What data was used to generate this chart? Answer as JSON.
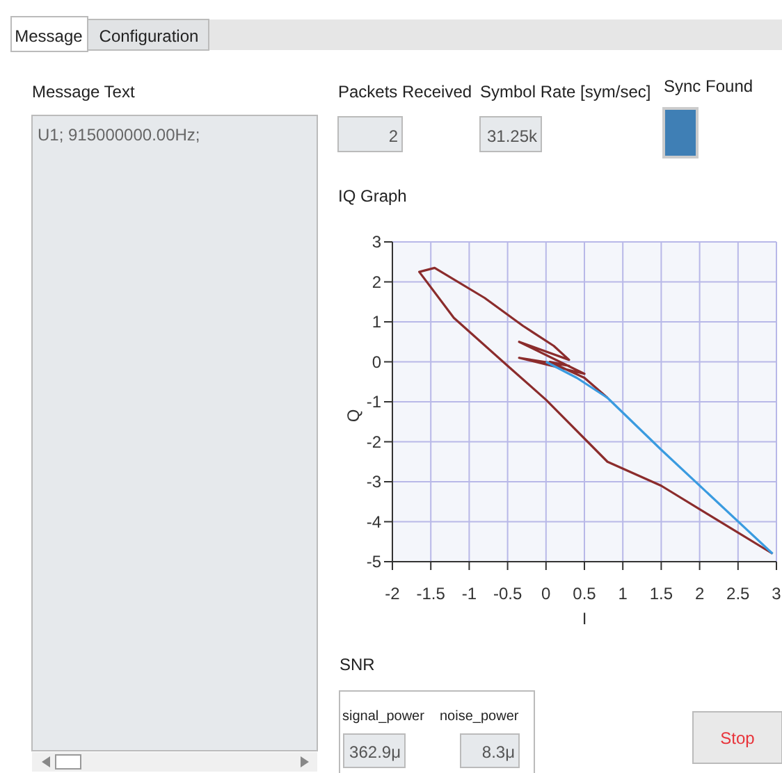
{
  "chart_data": [
    {
      "type": "other",
      "annotations": [
        "Message",
        "Configuration",
        "Message Text",
        "U1; 915000000.00Hz;",
        "Packets Received",
        "2",
        "Symbol Rate [sym/sec]",
        "31.25k",
        "Sync Found",
        "SNR",
        "signal_power",
        "noise_power",
        "362.9μ",
        "8.3μ",
        "Stop"
      ]
    },
    {
      "type": "line",
      "title": "IQ Graph",
      "xlabel": "I",
      "ylabel": "Q",
      "xlim": [
        -2,
        3
      ],
      "ylim": [
        -5,
        3
      ],
      "xticks": [
        -2,
        -1.5,
        -1,
        -0.5,
        0,
        0.5,
        1,
        1.5,
        2,
        2.5,
        3
      ],
      "yticks": [
        -5,
        -4,
        -3,
        -2,
        -1,
        0,
        1,
        2,
        3
      ],
      "grid": true,
      "series": [
        {
          "color": "#8b2c2c",
          "x": [
            2.95,
            1.5,
            0.8,
            0,
            -0.5,
            -1.2,
            -1.65,
            -1.45,
            -0.8,
            -0.3,
            0.1,
            0.3,
            -0.35,
            0.5,
            -0.35,
            0.3,
            0.05,
            0.5,
            0.8
          ],
          "values": [
            -4.8,
            -3.1,
            -2.5,
            -0.95,
            -0.1,
            1.1,
            2.25,
            2.35,
            1.6,
            0.9,
            0.4,
            0.05,
            0.5,
            -0.3,
            0.1,
            -0.1,
            0,
            -0.4,
            -0.9
          ]
        },
        {
          "color": "#3a9be0",
          "x": [
            0,
            0.4,
            0.8,
            1.5,
            2.95
          ],
          "values": [
            0,
            -0.4,
            -0.9,
            -2.2,
            -4.8
          ]
        }
      ]
    }
  ]
}
